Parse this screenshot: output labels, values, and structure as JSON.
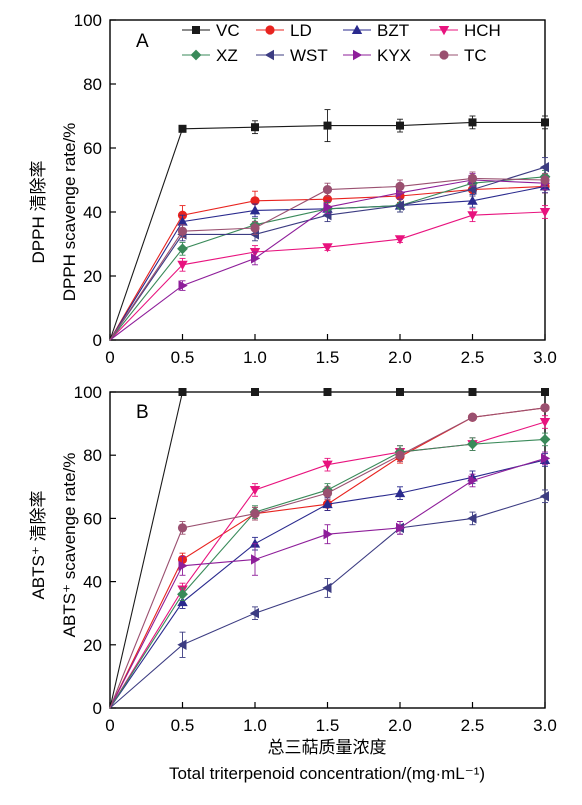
{
  "figure": {
    "xlabel_cn": "总三萜质量浓度",
    "xlabel_en": "Total triterpenoid concentration/(mg·mL⁻¹)"
  },
  "series_styles": [
    {
      "name": "VC",
      "color": "#1a1a1a",
      "marker": "square"
    },
    {
      "name": "LD",
      "color": "#e8231f",
      "marker": "circle"
    },
    {
      "name": "BZT",
      "color": "#2a2a8e",
      "marker": "triangle-up"
    },
    {
      "name": "HCH",
      "color": "#e8137e",
      "marker": "triangle-down"
    },
    {
      "name": "XZ",
      "color": "#3a8a5a",
      "marker": "diamond"
    },
    {
      "name": "WST",
      "color": "#3c3c82",
      "marker": "triangle-left"
    },
    {
      "name": "KYX",
      "color": "#8e1e9a",
      "marker": "triangle-right"
    },
    {
      "name": "TC",
      "color": "#9a5070",
      "marker": "circle"
    }
  ],
  "chart_data": [
    {
      "type": "line",
      "panel": "A",
      "ylabel_cn": "DPPH 清除率",
      "ylabel_en": "DPPH scavenge rate/%",
      "x": [
        0,
        0.5,
        1.0,
        1.5,
        2.0,
        2.5,
        3.0
      ],
      "x_ticks": [
        "0",
        "0.5",
        "1.0",
        "1.5",
        "2.0",
        "2.5",
        "3.0"
      ],
      "y_ticks": [
        "0",
        "20",
        "40",
        "60",
        "80",
        "100"
      ],
      "xlim": [
        0,
        3.0
      ],
      "ylim": [
        0,
        100
      ],
      "legend": "top",
      "series": [
        {
          "name": "VC",
          "values": [
            0,
            66,
            66.5,
            67,
            67,
            68,
            68
          ],
          "errors": [
            0,
            1,
            2,
            5,
            2,
            2,
            2
          ]
        },
        {
          "name": "LD",
          "values": [
            0,
            39,
            43.5,
            44,
            45,
            47,
            48
          ],
          "errors": [
            0,
            3,
            3,
            2,
            2,
            2,
            2
          ]
        },
        {
          "name": "BZT",
          "values": [
            0,
            37,
            40.5,
            41,
            42,
            43.5,
            48
          ],
          "errors": [
            0,
            2,
            2,
            2,
            2,
            2,
            2
          ]
        },
        {
          "name": "HCH",
          "values": [
            0,
            23.5,
            27.5,
            29,
            31.5,
            39,
            40
          ],
          "errors": [
            0,
            2,
            2,
            1,
            1,
            2,
            2
          ]
        },
        {
          "name": "XZ",
          "values": [
            0,
            28.5,
            36,
            41,
            42,
            49,
            51
          ],
          "errors": [
            0,
            2,
            2,
            2,
            2,
            2,
            2
          ]
        },
        {
          "name": "WST",
          "values": [
            0,
            33,
            33,
            39,
            42,
            47,
            54
          ],
          "errors": [
            0,
            2,
            2,
            2,
            2,
            2,
            3
          ]
        },
        {
          "name": "KYX",
          "values": [
            0,
            17,
            25.5,
            41.5,
            46,
            50,
            49
          ],
          "errors": [
            0,
            1.5,
            2,
            2,
            2,
            2,
            2
          ]
        },
        {
          "name": "TC",
          "values": [
            0,
            34,
            35,
            47,
            48,
            50.5,
            50
          ],
          "errors": [
            0,
            2,
            2,
            2,
            2,
            2,
            2
          ]
        }
      ]
    },
    {
      "type": "line",
      "panel": "B",
      "ylabel_cn": "ABTS⁺ 清除率",
      "ylabel_en": "ABTS⁺ scavenge rate/%",
      "x": [
        0,
        0.5,
        1.0,
        1.5,
        2.0,
        2.5,
        3.0
      ],
      "x_ticks": [
        "0",
        "0.5",
        "1.0",
        "1.5",
        "2.0",
        "2.5",
        "3.0"
      ],
      "y_ticks": [
        "0",
        "20",
        "40",
        "60",
        "80",
        "100"
      ],
      "xlim": [
        0,
        3.0
      ],
      "ylim": [
        0,
        100
      ],
      "series": [
        {
          "name": "VC",
          "values": [
            0,
            100,
            100,
            100,
            100,
            100,
            100
          ],
          "errors": [
            0,
            0,
            0,
            0,
            0,
            0,
            0
          ]
        },
        {
          "name": "LD",
          "values": [
            0,
            47,
            61.5,
            64.5,
            79.5,
            92,
            95
          ],
          "errors": [
            0,
            2,
            2,
            2,
            2,
            1,
            1
          ]
        },
        {
          "name": "BZT",
          "values": [
            0,
            33.5,
            52,
            64.5,
            68,
            73,
            78.5
          ],
          "errors": [
            0,
            2,
            2,
            2,
            2,
            2,
            2
          ]
        },
        {
          "name": "HCH",
          "values": [
            0,
            37.5,
            69,
            77,
            81,
            83.5,
            90.5
          ],
          "errors": [
            0,
            2,
            2,
            2,
            2,
            2,
            2
          ]
        },
        {
          "name": "XZ",
          "values": [
            0,
            36,
            62,
            69,
            81,
            83.5,
            85
          ],
          "errors": [
            0,
            2,
            2,
            2,
            2,
            2,
            2
          ]
        },
        {
          "name": "WST",
          "values": [
            0,
            20,
            30,
            38,
            57,
            60,
            67
          ],
          "errors": [
            0,
            4,
            2,
            3,
            2,
            2,
            2
          ]
        },
        {
          "name": "KYX",
          "values": [
            0,
            45,
            47,
            55,
            57,
            72,
            79
          ],
          "errors": [
            0,
            3,
            5,
            3,
            2,
            2,
            2
          ]
        },
        {
          "name": "TC",
          "values": [
            0,
            57,
            61.5,
            68,
            80,
            92,
            95
          ],
          "errors": [
            0,
            2,
            2,
            2,
            2,
            1,
            1
          ]
        }
      ]
    }
  ]
}
